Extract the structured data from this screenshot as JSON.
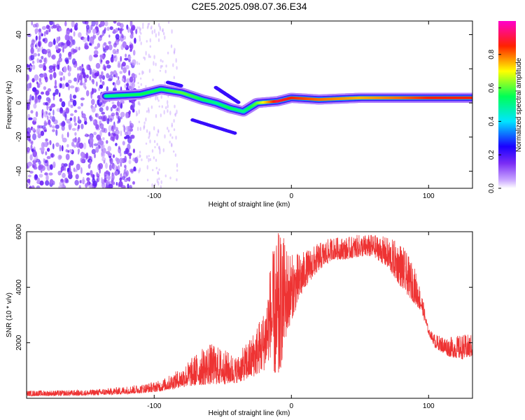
{
  "title": "C2E5.2025.098.07.36.E34",
  "chart_data": [
    {
      "type": "heatmap",
      "xlabel": "Height of straight line (km)",
      "ylabel": "Frequency (Hz)",
      "xlim": [
        -193,
        132
      ],
      "ylim": [
        -50,
        48
      ],
      "xticks": [
        -100,
        0,
        100
      ],
      "yticks": [
        -40,
        -20,
        0,
        20,
        40
      ],
      "colorbar": {
        "label": "Normalized spectral amplitude",
        "range": [
          0,
          1
        ],
        "ticks": [
          0.0,
          0.2,
          0.4,
          0.6,
          0.8
        ],
        "colormap": [
          "#ff00cc",
          "#ff0000",
          "#ffff00",
          "#00ff00",
          "#00ffff",
          "#0000ff",
          "#ffffff"
        ]
      },
      "ridge": {
        "description_points": [
          {
            "x": -135,
            "y": 4,
            "amp": 0.5
          },
          {
            "x": -110,
            "y": 5,
            "amp": 0.55
          },
          {
            "x": -95,
            "y": 8,
            "amp": 0.55
          },
          {
            "x": -80,
            "y": 6,
            "amp": 0.6
          },
          {
            "x": -65,
            "y": 2,
            "amp": 0.55
          },
          {
            "x": -55,
            "y": 0,
            "amp": 0.5
          },
          {
            "x": -45,
            "y": -3,
            "amp": 0.55
          },
          {
            "x": -35,
            "y": -5,
            "amp": 0.5
          },
          {
            "x": -25,
            "y": 0,
            "amp": 0.6
          },
          {
            "x": -10,
            "y": 1,
            "amp": 0.9
          },
          {
            "x": 0,
            "y": 3,
            "amp": 0.85
          },
          {
            "x": 20,
            "y": 2,
            "amp": 0.8
          },
          {
            "x": 50,
            "y": 3,
            "amp": 0.75
          },
          {
            "x": 80,
            "y": 3,
            "amp": 0.8
          },
          {
            "x": 100,
            "y": 3,
            "amp": 0.85
          },
          {
            "x": 130,
            "y": 3,
            "amp": 0.85
          }
        ]
      },
      "colors": {
        "noise": "#7b2ff7",
        "ridge_core": "#e8202a"
      }
    },
    {
      "type": "line",
      "xlabel": "Height of straight line (km)",
      "ylabel": "SNR (10 * v/v)",
      "xlim": [
        -193,
        132
      ],
      "ylim": [
        0,
        6000
      ],
      "xticks": [
        -100,
        0,
        100
      ],
      "yticks": [
        2000,
        4000,
        6000
      ],
      "series": [
        {
          "color": "#ee3333",
          "envelope": {
            "x": [
              -193,
              -150,
              -130,
              -110,
              -95,
              -80,
              -70,
              -60,
              -50,
              -40,
              -30,
              -20,
              -15,
              -10,
              -5,
              0,
              10,
              20,
              30,
              40,
              50,
              60,
              70,
              80,
              90,
              95,
              100,
              105,
              115,
              125,
              132
            ],
            "low": [
              80,
              100,
              130,
              180,
              250,
              400,
              450,
              500,
              500,
              550,
              700,
              1000,
              1500,
              300,
              2000,
              2800,
              4000,
              4600,
              5000,
              5000,
              5100,
              5100,
              4700,
              4000,
              3400,
              3100,
              2300,
              1800,
              1500,
              1400,
              1500
            ],
            "high": [
              280,
              300,
              380,
              500,
              650,
              1100,
              1600,
              2000,
              1800,
              1500,
              2200,
              3200,
              5000,
              6000,
              5800,
              5200,
              5300,
              5600,
              5800,
              5800,
              5900,
              5900,
              5800,
              5600,
              4700,
              3800,
              2500,
              2300,
              2200,
              2300,
              2300
            ]
          }
        }
      ]
    }
  ]
}
